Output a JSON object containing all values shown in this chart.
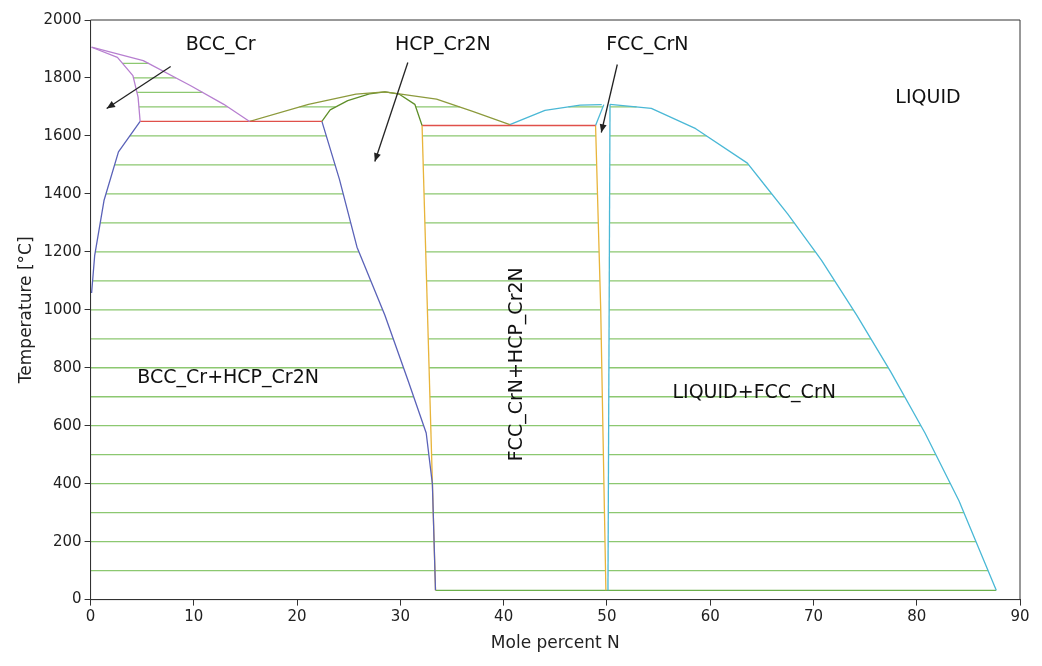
{
  "chart_data": {
    "type": "line",
    "xlabel": "Mole percent N",
    "ylabel": "Temperature [°C]",
    "xlim": [
      0,
      90
    ],
    "ylim": [
      0,
      2000
    ],
    "xticks": [
      0,
      10,
      20,
      30,
      40,
      50,
      60,
      70,
      80,
      90
    ],
    "yticks": [
      0,
      200,
      400,
      600,
      800,
      1000,
      1200,
      1400,
      1600,
      1800,
      2000
    ],
    "marker": "none",
    "line_style": "solid",
    "legend": false,
    "series": [
      {
        "color": "#b77fd0",
        "x": [
          0.1,
          5.1,
          9.7,
          12.9,
          15.4
        ],
        "values": [
          1906,
          1860,
          1773,
          1709,
          1650
        ]
      },
      {
        "color": "#b77fd0",
        "x": [
          0.1,
          2.6,
          4.1,
          4.6,
          4.8
        ],
        "values": [
          1906,
          1871,
          1808,
          1734,
          1650
        ]
      },
      {
        "color": "#5a62b8",
        "x": [
          4.8,
          2.7,
          1.3,
          0.4,
          0.1
        ],
        "values": [
          1650,
          1545,
          1377,
          1188,
          1058
        ]
      },
      {
        "color": "#e0504a",
        "x": [
          4.8,
          22.4
        ],
        "values": [
          1650,
          1650
        ]
      },
      {
        "color": "#8c9a3c",
        "x": [
          15.4,
          21.1,
          25.7,
          28.5,
          33.5,
          37,
          40.6
        ],
        "values": [
          1650,
          1709,
          1744,
          1752,
          1727,
          1685,
          1639
        ]
      },
      {
        "color": "#5f8f2a",
        "x": [
          22.4,
          23.2,
          24.9,
          27,
          28.5,
          29.9,
          31.4,
          32.1
        ],
        "values": [
          1650,
          1690,
          1722,
          1745,
          1752,
          1744,
          1709,
          1636
        ]
      },
      {
        "color": "#5a62b8",
        "x": [
          22.4,
          24.1,
          25.8,
          28.5,
          30.8,
          32.5,
          33.1,
          33.4
        ],
        "values": [
          1650,
          1450,
          1216,
          981,
          750,
          575,
          399,
          32
        ]
      },
      {
        "color": "#e8b43a",
        "x": [
          32.1,
          33.4
        ],
        "values": [
          1636,
          32
        ]
      },
      {
        "color": "#e0504a",
        "x": [
          32.1,
          48.9
        ],
        "values": [
          1636,
          1636
        ]
      },
      {
        "color": "#4ab8d6",
        "x": [
          40.6,
          44,
          47.4,
          49.5
        ],
        "values": [
          1639,
          1688,
          1706,
          1708
        ]
      },
      {
        "color": "#4ab8d6",
        "x": [
          48.9,
          49.7
        ],
        "values": [
          1636,
          1708
        ]
      },
      {
        "color": "#e8b43a",
        "x": [
          48.9,
          49.4,
          49.9
        ],
        "values": [
          1636,
          1000,
          32
        ]
      },
      {
        "color": "#4ab8d6",
        "x": [
          50.3,
          50.1
        ],
        "values": [
          1709,
          32
        ]
      },
      {
        "color": "#4ab8d6",
        "x": [
          50.3,
          54.3,
          58.6,
          63.6,
          67.5,
          70.8,
          74.2,
          77.5,
          80.8,
          84.1,
          87.7
        ],
        "values": [
          1709,
          1695,
          1625,
          1506,
          1331,
          1170,
          981,
          785,
          575,
          340,
          32
        ]
      },
      {
        "color": "#6cb04c",
        "x": [
          33.4,
          87.7
        ],
        "values": [
          32,
          32
        ]
      },
      {
        "color": "#8cc870",
        "x": [
          0,
          33.34,
          null,
          33.34,
          49.86,
          null,
          50.11,
          86.91,
          null,
          0,
          33.26,
          null,
          33.26,
          49.81,
          null,
          50.12,
          85.74,
          null,
          0,
          33.18,
          null,
          33.18,
          49.76,
          null,
          50.13,
          84.57,
          null,
          0,
          33.1,
          null,
          33.1,
          49.71,
          null,
          50.14,
          83.26,
          null,
          0,
          32.76,
          null,
          33.02,
          49.66,
          null,
          50.16,
          81.85,
          null,
          0,
          32.26,
          null,
          32.94,
          49.61,
          null,
          50.17,
          80.41,
          null,
          0,
          31.29,
          null,
          32.86,
          49.55,
          null,
          50.18,
          78.84,
          null,
          0,
          30.3,
          null,
          32.78,
          49.5,
          null,
          50.19,
          77.25,
          null,
          0,
          29.31,
          null,
          32.7,
          49.45,
          null,
          50.2,
          75.56,
          null,
          0,
          28.28,
          null,
          32.62,
          49.4,
          null,
          50.22,
          73.86,
          null,
          0.2,
          27.13,
          null,
          32.53,
          49.32,
          null,
          50.23,
          72.06,
          null,
          0.46,
          25.98,
          null,
          32.45,
          49.24,
          null,
          50.24,
          70.19,
          null,
          0.93,
          25.19,
          null,
          32.37,
          49.16,
          null,
          50.25,
          68.14,
          null,
          1.49,
          24.46,
          null,
          32.29,
          49.09,
          null,
          50.26,
          65.96,
          null,
          2.33,
          23.68,
          null,
          32.21,
          49.01,
          null,
          50.28,
          63.73,
          null,
          3.8,
          22.83,
          null,
          32.13,
          48.93,
          null,
          50.29,
          59.65,
          null,
          4.68,
          13.28,
          null,
          20.23,
          23.73,
          null,
          31.49,
          35.75,
          null,
          46.27,
          49.61,
          null,
          50.3,
          52.87,
          null,
          4.49,
          10.85,
          null,
          4.15,
          8.27,
          null,
          3.1,
          5.63
        ],
        "values": [
          100,
          100,
          null,
          100,
          100,
          null,
          100,
          100,
          null,
          200,
          200,
          null,
          200,
          200,
          null,
          200,
          200,
          null,
          300,
          300,
          null,
          300,
          300,
          null,
          300,
          300,
          null,
          400,
          400,
          null,
          400,
          400,
          null,
          400,
          400,
          null,
          500,
          500,
          null,
          500,
          500,
          null,
          500,
          500,
          null,
          600,
          600,
          null,
          600,
          600,
          null,
          600,
          600,
          null,
          700,
          700,
          null,
          700,
          700,
          null,
          700,
          700,
          null,
          800,
          800,
          null,
          800,
          800,
          null,
          800,
          800,
          null,
          900,
          900,
          null,
          900,
          900,
          null,
          900,
          900,
          null,
          1000,
          1000,
          null,
          1000,
          1000,
          null,
          1000,
          1000,
          null,
          1100,
          1100,
          null,
          1100,
          1100,
          null,
          1100,
          1100,
          null,
          1200,
          1200,
          null,
          1200,
          1200,
          null,
          1200,
          1200,
          null,
          1300,
          1300,
          null,
          1300,
          1300,
          null,
          1300,
          1300,
          null,
          1400,
          1400,
          null,
          1400,
          1400,
          null,
          1400,
          1400,
          null,
          1500,
          1500,
          null,
          1500,
          1500,
          null,
          1500,
          1500,
          null,
          1600,
          1600,
          null,
          1600,
          1600,
          null,
          1600,
          1600,
          null,
          1700,
          1700,
          null,
          1700,
          1700,
          null,
          1700,
          1700,
          null,
          1700,
          1700,
          null,
          1700,
          1700,
          null,
          1750,
          1750,
          null,
          1800,
          1800,
          null,
          1850,
          1850
        ]
      }
    ],
    "annotations": [
      "BCC_Cr",
      "HCP_Cr2N",
      "FCC_CrN",
      "LIQUID",
      "BCC_Cr+HCP_Cr2N",
      "FCC_CrN+HCP_Cr2N",
      "LIQUID+FCC_CrN"
    ]
  }
}
